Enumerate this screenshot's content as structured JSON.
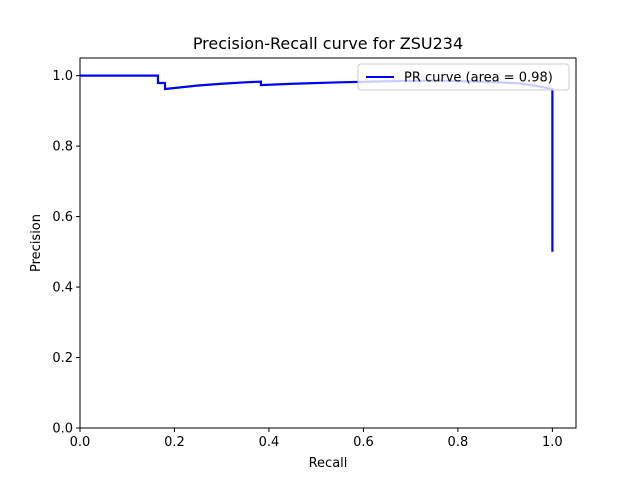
{
  "chart_data": {
    "type": "line",
    "title": "Precision-Recall curve for ZSU234",
    "xlabel": "Recall",
    "ylabel": "Precision",
    "xlim": [
      0.0,
      1.05
    ],
    "ylim": [
      0.0,
      1.05
    ],
    "xticks": [
      "0.0",
      "0.2",
      "0.4",
      "0.6",
      "0.8",
      "1.0"
    ],
    "yticks": [
      "0.0",
      "0.2",
      "0.4",
      "0.6",
      "0.8",
      "1.0"
    ],
    "grid": false,
    "legend_position": "top-right",
    "series": [
      {
        "name": "PR curve (area = 0.98)",
        "color": "#0000ff",
        "x": [
          0.0,
          0.165,
          0.165,
          0.18,
          0.18,
          0.25,
          0.3,
          0.35,
          0.383,
          0.383,
          0.45,
          0.55,
          0.65,
          0.75,
          0.85,
          0.93,
          0.97,
          1.0,
          1.0,
          1.0
        ],
        "y": [
          1.0,
          1.0,
          0.979,
          0.979,
          0.962,
          0.972,
          0.977,
          0.981,
          0.983,
          0.973,
          0.977,
          0.981,
          0.984,
          0.986,
          0.983,
          0.978,
          0.97,
          0.962,
          0.95,
          0.5
        ]
      }
    ]
  }
}
